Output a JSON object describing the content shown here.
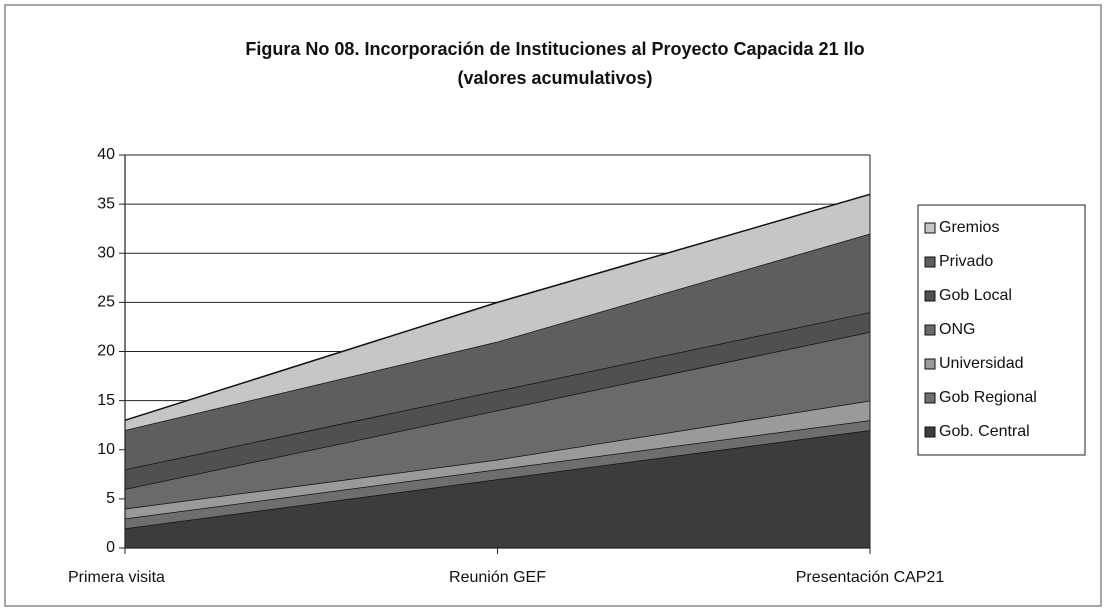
{
  "chart_data": {
    "type": "stacked_area",
    "title": "Figura No 08. Incorporación de Instituciones al Proyecto Capacida 21 Ilo",
    "subtitle": "(valores acumulativos)",
    "categories": [
      "Primera visita",
      "Reunión GEF",
      "Presentación CAP21"
    ],
    "series": [
      {
        "name": "Gob. Central",
        "color": "#3c3c3c",
        "values": [
          2,
          7,
          12
        ]
      },
      {
        "name": "Gob Regional",
        "color": "#6e6e6e",
        "values": [
          1,
          1,
          1
        ]
      },
      {
        "name": "Universidad",
        "color": "#9a9a9a",
        "values": [
          1,
          1,
          2
        ]
      },
      {
        "name": "ONG",
        "color": "#6a6a6a",
        "values": [
          2,
          5,
          7
        ]
      },
      {
        "name": "Gob Local",
        "color": "#505050",
        "values": [
          2,
          2,
          2
        ]
      },
      {
        "name": "Privado",
        "color": "#5e5e5e",
        "values": [
          4,
          5,
          8
        ]
      },
      {
        "name": "Gremios",
        "color": "#c6c6c6",
        "values": [
          1,
          4,
          4
        ]
      }
    ],
    "ylim": [
      0,
      40
    ],
    "yticks": [
      0,
      5,
      10,
      15,
      20,
      25,
      30,
      35,
      40
    ],
    "grid": true,
    "legend": "right"
  }
}
